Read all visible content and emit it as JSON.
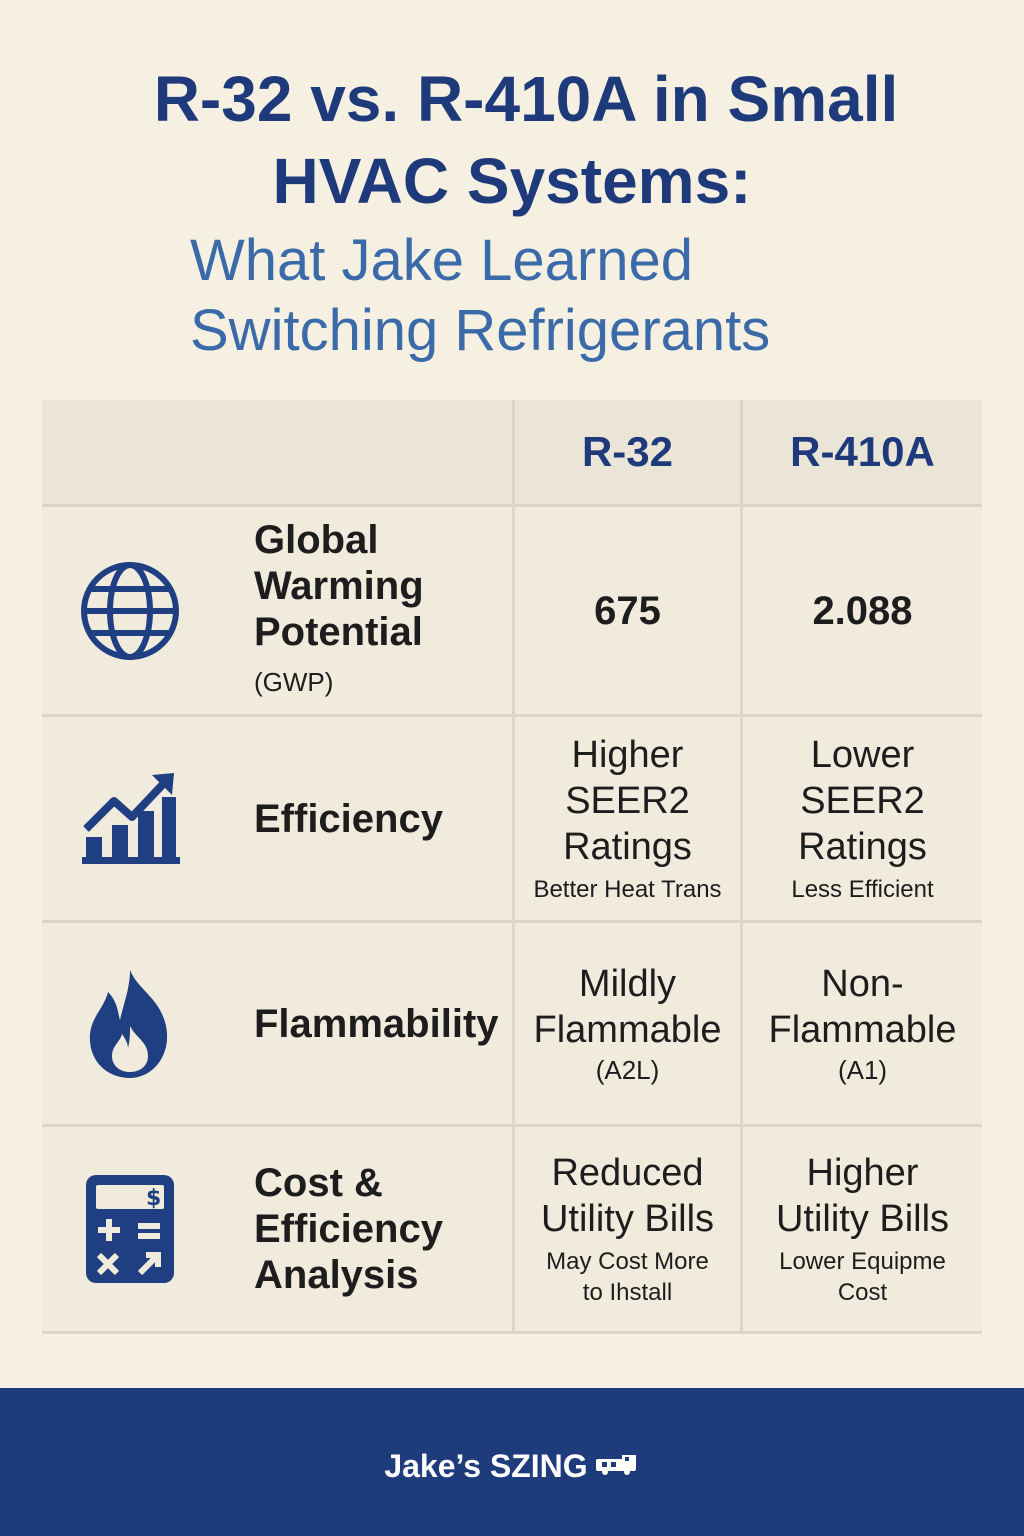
{
  "title": {
    "line1": "R-32 vs. R-410A in Small",
    "line2": "HVAC Systems:"
  },
  "subtitle": {
    "line1": "What Jake Learned",
    "line2": "Switching Refrigerants"
  },
  "table": {
    "headers": [
      "",
      "R-32",
      "R-410A"
    ],
    "rows": [
      {
        "icon": "globe-icon",
        "label_lines": [
          "Global",
          "Warming",
          "Potential"
        ],
        "label_suffix": "(GWP)",
        "r32": {
          "main": "675"
        },
        "r410a": {
          "main": "2.088"
        }
      },
      {
        "icon": "growth-chart-icon",
        "label_lines": [
          "Efficiency"
        ],
        "r32": {
          "main_lines": [
            "Higher",
            "SEER2",
            "Ratings"
          ],
          "sub_lines": [
            "Better Heat Trans"
          ]
        },
        "r410a": {
          "main_lines": [
            "Lower",
            "SEER2",
            "Ratings"
          ],
          "sub_lines": [
            "Less Efficient"
          ]
        }
      },
      {
        "icon": "flame-icon",
        "label_lines": [
          "Flammability"
        ],
        "r32": {
          "main_lines": [
            "Mildly",
            "Flammable"
          ],
          "sub_lines": [
            "(A2L)"
          ]
        },
        "r410a": {
          "main_lines": [
            "Non-",
            "Flammable"
          ],
          "sub_lines": [
            "(A1)"
          ]
        }
      },
      {
        "icon": "calculator-icon",
        "label_lines": [
          "Cost &",
          "Efficiency",
          "Analysis"
        ],
        "r32": {
          "main_lines": [
            "Reduced",
            "Utility Bills"
          ],
          "sub_lines": [
            "May Cost More",
            "to Ihstall"
          ]
        },
        "r410a": {
          "main_lines": [
            "Higher",
            "Utility Bills"
          ],
          "sub_lines": [
            "Lower Equipme",
            "Cost"
          ]
        }
      }
    ]
  },
  "footer": {
    "brand": "Jake’s SZING",
    "brand_icon": "van-logo-icon"
  },
  "colors": {
    "navy": "#1e3a7a",
    "subtitle_blue": "#3b6aa8",
    "background": "#f6f0e2",
    "footer": "#1e3b7c",
    "icon_blue": "#1f3f82"
  }
}
